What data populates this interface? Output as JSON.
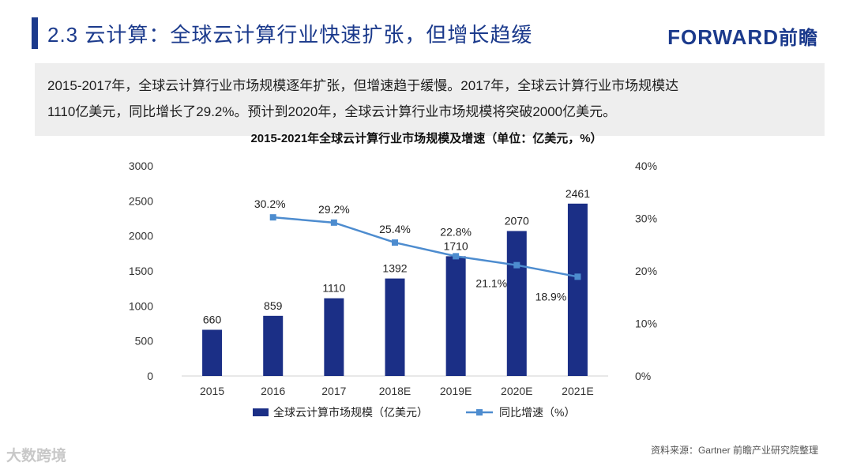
{
  "header": {
    "title": "2.3 云计算：全球云计算行业快速扩张，但增长趋缓",
    "logo_text": "FORWARD",
    "logo_cn": "前瞻"
  },
  "summary": {
    "line1": "2015-2017年，全球云计算行业市场规模逐年扩张，但增速趋于缓慢。2017年，全球云计算行业市场规模达",
    "line2": "1110亿美元，同比增长了29.2%。预计到2020年，全球云计算行业市场规模将突破2000亿美元。"
  },
  "footer": {
    "source": "资料来源：Gartner 前瞻产业研究院整理",
    "watermark": "大数跨境"
  },
  "colors": {
    "bar": "#1b2f86",
    "line": "#4d8ccf",
    "title": "#1b3a8c"
  },
  "chart_data": {
    "type": "bar",
    "title": "2015-2021年全球云计算行业市场规模及增速（单位：亿美元，%）",
    "categories": [
      "2015",
      "2016",
      "2017",
      "2018E",
      "2019E",
      "2020E",
      "2021E"
    ],
    "series": [
      {
        "name": "全球云计算市场规模（亿美元）",
        "type": "bar",
        "axis": "left",
        "values": [
          660,
          859,
          1110,
          1392,
          1710,
          2070,
          2461
        ],
        "labels": [
          "660",
          "859",
          "1110",
          "1392",
          "1710",
          "2070",
          "2461"
        ]
      },
      {
        "name": "同比增速（%）",
        "type": "line",
        "axis": "right",
        "values": [
          null,
          30.2,
          29.2,
          25.4,
          22.8,
          21.1,
          18.9
        ],
        "labels": [
          "",
          "30.2%",
          "29.2%",
          "25.4%",
          "22.8%",
          "21.1%",
          "18.9%"
        ]
      }
    ],
    "y_left": {
      "min": 0,
      "max": 3000,
      "ticks": [
        "0",
        "500",
        "1000",
        "1500",
        "2000",
        "2500",
        "3000"
      ]
    },
    "y_right": {
      "min": 0,
      "max": 40,
      "ticks": [
        "0%",
        "10%",
        "20%",
        "30%",
        "40%"
      ]
    },
    "legend_position": "bottom"
  }
}
